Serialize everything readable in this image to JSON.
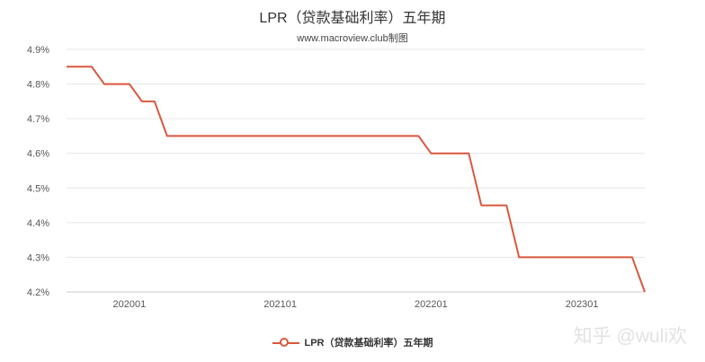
{
  "chart_data": {
    "type": "line",
    "title": "LPR（贷款基础利率）五年期",
    "subtitle": "www.macroview.club制图",
    "xlabel": "",
    "ylabel": "",
    "ylim": [
      4.2,
      4.9
    ],
    "yticks": [
      "4.9%",
      "4.8%",
      "4.7%",
      "4.6%",
      "4.5%",
      "4.4%",
      "4.3%",
      "4.2%"
    ],
    "xticks": [
      "202001",
      "202101",
      "202201",
      "202301"
    ],
    "grid": true,
    "legend": "bottom",
    "series": [
      {
        "name": "LPR（贷款基础利率）五年期",
        "color": "#d9573e",
        "points": [
          [
            "2019-08",
            4.85
          ],
          [
            "2019-09",
            4.85
          ],
          [
            "2019-10",
            4.85
          ],
          [
            "2019-11",
            4.8
          ],
          [
            "2019-12",
            4.8
          ],
          [
            "2020-01",
            4.8
          ],
          [
            "2020-02",
            4.75
          ],
          [
            "2020-03",
            4.75
          ],
          [
            "2020-04",
            4.65
          ],
          [
            "2020-05",
            4.65
          ],
          [
            "2020-06",
            4.65
          ],
          [
            "2020-07",
            4.65
          ],
          [
            "2020-08",
            4.65
          ],
          [
            "2020-09",
            4.65
          ],
          [
            "2020-10",
            4.65
          ],
          [
            "2020-11",
            4.65
          ],
          [
            "2020-12",
            4.65
          ],
          [
            "2021-01",
            4.65
          ],
          [
            "2021-02",
            4.65
          ],
          [
            "2021-03",
            4.65
          ],
          [
            "2021-04",
            4.65
          ],
          [
            "2021-05",
            4.65
          ],
          [
            "2021-06",
            4.65
          ],
          [
            "2021-07",
            4.65
          ],
          [
            "2021-08",
            4.65
          ],
          [
            "2021-09",
            4.65
          ],
          [
            "2021-10",
            4.65
          ],
          [
            "2021-11",
            4.65
          ],
          [
            "2021-12",
            4.65
          ],
          [
            "2022-01",
            4.6
          ],
          [
            "2022-02",
            4.6
          ],
          [
            "2022-03",
            4.6
          ],
          [
            "2022-04",
            4.6
          ],
          [
            "2022-05",
            4.45
          ],
          [
            "2022-06",
            4.45
          ],
          [
            "2022-07",
            4.45
          ],
          [
            "2022-08",
            4.3
          ],
          [
            "2022-09",
            4.3
          ],
          [
            "2022-10",
            4.3
          ],
          [
            "2022-11",
            4.3
          ],
          [
            "2022-12",
            4.3
          ],
          [
            "2023-01",
            4.3
          ],
          [
            "2023-02",
            4.3
          ],
          [
            "2023-03",
            4.3
          ],
          [
            "2023-04",
            4.3
          ],
          [
            "2023-05",
            4.3
          ],
          [
            "2023-06",
            4.2
          ]
        ]
      }
    ]
  },
  "legend_label": "LPR（贷款基础利率）五年期",
  "watermark": "知乎 @wuli欢"
}
